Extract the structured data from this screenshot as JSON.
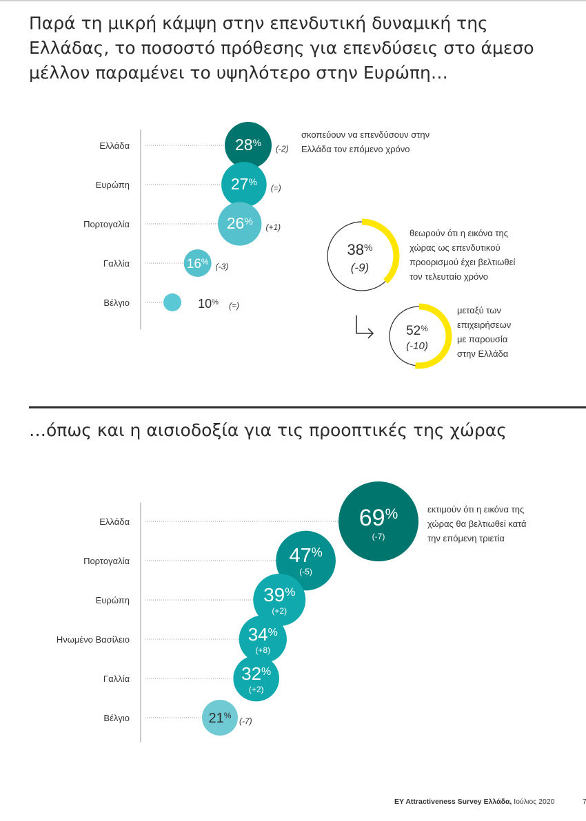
{
  "headline1": "Παρά τη μικρή κάμψη στην επενδυτική δυναμική της Ελλάδας, το ποσοστό πρόθεσης για επενδύσεις στο άμεσο μέλλον παραμένει το υψηλότερο στην Ευρώπη…",
  "headline2": "…όπως και η αισιοδοξία για τις προοπτικές της χώρας",
  "footer": {
    "source": "EY Attractiveness Survey Ελλάδα,",
    "date": " Ιούλιος 2020",
    "page": "7"
  },
  "chart_data": [
    {
      "type": "bubble",
      "categories": [
        "Ελλάδα",
        "Ευρώπη",
        "Πορτογαλία",
        "Γαλλία",
        "Βέλγιο"
      ],
      "values": [
        28,
        27,
        26,
        16,
        10
      ],
      "changes": [
        "(-2)",
        "(=)",
        "(+1)",
        "(-3)",
        "(=)"
      ],
      "annotation": [
        "σκοπεύουν να επενδύσουν στην",
        "Ελλάδα τον επόμενο χρόνο"
      ],
      "colors": [
        "#00756d",
        "#10a9ae",
        "#54c1cc",
        "#54c1cc",
        "#5bc8d6"
      ],
      "donuts": [
        {
          "value": 38,
          "change": "(-9)",
          "label": [
            "θεωρούν ότι η εικόνα της",
            "χώρας ως επενδυτικού",
            "προορισμού έχει βελτιωθεί",
            "τον τελευταίο χρόνο"
          ]
        },
        {
          "value": 52,
          "change": "(-10)",
          "label": [
            "μεταξύ των",
            "επιχειρήσεων",
            "με παρουσία",
            "στην Ελλάδα"
          ]
        }
      ],
      "donut_color": "#ffe600"
    },
    {
      "type": "bubble",
      "categories": [
        "Ελλάδα",
        "Πορτογαλία",
        "Ευρώπη",
        "Ηνωμένο Βασίλειο",
        "Γαλλία",
        "Βέλγιο"
      ],
      "values": [
        69,
        47,
        39,
        34,
        32,
        21
      ],
      "changes": [
        "(-7)",
        "(-5)",
        "(+2)",
        "(+8)",
        "(+2)",
        "(-7)"
      ],
      "annotation": [
        "εκτιμούν ότι η εικόνα της",
        "χώρας θα βελτιωθεί κατά",
        "την επόμενη τριετία"
      ],
      "colors": [
        "#00756d",
        "#05908f",
        "#10a9ae",
        "#10a9ae",
        "#10a9ae",
        "#6fcad3"
      ]
    }
  ]
}
